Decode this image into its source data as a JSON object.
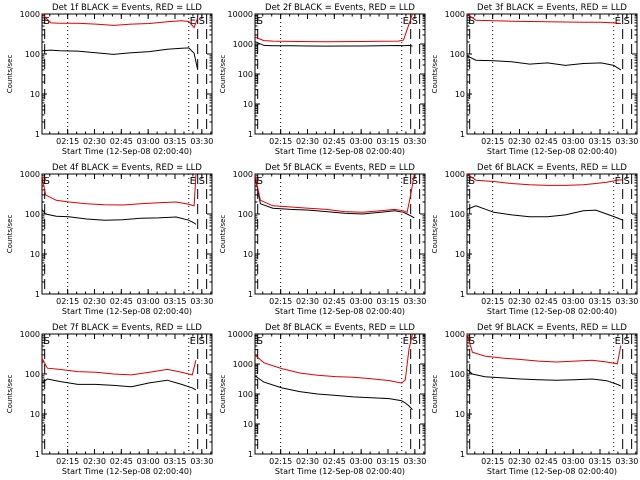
{
  "figure": {
    "xtick_labels": [
      "02:15",
      "02:30",
      "02:45",
      "03:00",
      "03:15",
      "03:30"
    ],
    "xlabel": "Start Time (12-Sep-08 02:00:40)",
    "ylabel": "Counts/sec",
    "ytick_labels": [
      "1",
      "10",
      "100",
      "1000"
    ],
    "ytick_labels_tall": [
      "1",
      "10",
      "100",
      "1000",
      "10000"
    ]
  },
  "colors": {
    "events": "#000000",
    "lld": "#e00000"
  },
  "chart_data": [
    {
      "type": "line",
      "title": "Det 1f BLACK = Events, RED = LLD",
      "xlabel": "Start Time (12-Sep-08 02:00:40)",
      "ylabel": "Counts/sec",
      "yscale": "log",
      "ylim": [
        1,
        1000
      ],
      "xlim_minutes": [
        0,
        95
      ],
      "x_minutes": [
        0,
        5,
        10,
        20,
        30,
        40,
        50,
        60,
        70,
        78,
        82,
        85,
        87
      ],
      "series": [
        {
          "name": "Events",
          "color": "#000000",
          "values": [
            120,
            125,
            120,
            118,
            108,
            98,
            108,
            115,
            132,
            140,
            142,
            105,
            40
          ]
        },
        {
          "name": "LLD",
          "color": "#e00000",
          "values": [
            1000,
            600,
            590,
            590,
            560,
            520,
            560,
            580,
            640,
            680,
            650,
            460,
            800
          ]
        }
      ],
      "markers": {
        "S_left": "S",
        "E": "E",
        "S_right": "S"
      }
    },
    {
      "type": "line",
      "title": "Det 2f BLACK = Events, RED = LLD",
      "xlabel": "Start Time (12-Sep-08 02:00:40)",
      "ylabel": "Counts/sec",
      "yscale": "log",
      "ylim": [
        1,
        10000
      ],
      "xlim_minutes": [
        0,
        95
      ],
      "x_minutes": [
        0,
        5,
        10,
        20,
        30,
        40,
        50,
        60,
        70,
        80,
        83,
        86,
        88
      ],
      "series": [
        {
          "name": "Events",
          "color": "#000000",
          "values": [
            1200,
            900,
            880,
            870,
            860,
            850,
            860,
            860,
            880,
            890,
            880,
            900,
            850
          ]
        },
        {
          "name": "LLD",
          "color": "#e00000",
          "values": [
            1700,
            1300,
            1250,
            1220,
            1200,
            1180,
            1200,
            1210,
            1230,
            1250,
            1350,
            4500,
            10000
          ]
        }
      ],
      "markers": {
        "S_left": "S",
        "E": "E",
        "S_right": "S"
      }
    },
    {
      "type": "line",
      "title": "Det 3f BLACK = Events, RED = LLD",
      "xlabel": "Start Time (12-Sep-08 02:00:40)",
      "ylabel": "Counts/sec",
      "yscale": "log",
      "ylim": [
        1,
        1000
      ],
      "xlim_minutes": [
        0,
        95
      ],
      "x_minutes": [
        0,
        5,
        15,
        25,
        35,
        45,
        55,
        65,
        75,
        82,
        86
      ],
      "series": [
        {
          "name": "Events",
          "color": "#000000",
          "values": [
            90,
            70,
            68,
            64,
            56,
            60,
            52,
            58,
            60,
            52,
            40
          ]
        },
        {
          "name": "LLD",
          "color": "#e00000",
          "values": [
            1000,
            700,
            680,
            660,
            650,
            640,
            630,
            620,
            620,
            600,
            580
          ]
        }
      ],
      "markers": {
        "S_left": "S",
        "E": "E",
        "S_right": "S"
      }
    },
    {
      "type": "line",
      "title": "Det 4f BLACK = Events, RED = LLD",
      "xlabel": "Start Time (12-Sep-08 02:00:40)",
      "ylabel": "Counts/sec",
      "yscale": "log",
      "ylim": [
        1,
        1000
      ],
      "xlim_minutes": [
        0,
        95
      ],
      "x_minutes": [
        0,
        2,
        8,
        15,
        25,
        35,
        45,
        55,
        65,
        75,
        82,
        85,
        86
      ],
      "series": [
        {
          "name": "Events",
          "color": "#000000",
          "values": [
            130,
            100,
            88,
            85,
            75,
            70,
            72,
            78,
            80,
            84,
            70,
            60,
            55
          ]
        },
        {
          "name": "LLD",
          "color": "#e00000",
          "values": [
            900,
            300,
            220,
            200,
            180,
            170,
            168,
            180,
            190,
            200,
            175,
            160,
            950
          ]
        }
      ],
      "markers": {
        "S_left": "S",
        "E": "E",
        "S_right": "S"
      }
    },
    {
      "type": "line",
      "title": "Det 5f BLACK = Events, RED = LLD",
      "xlabel": "Start Time (12-Sep-08 02:00:40)",
      "ylabel": "Counts/sec",
      "yscale": "log",
      "ylim": [
        1,
        1000
      ],
      "xlim_minutes": [
        0,
        95
      ],
      "x_minutes": [
        0,
        3,
        10,
        20,
        30,
        40,
        50,
        60,
        70,
        78,
        83,
        85,
        87,
        89
      ],
      "series": [
        {
          "name": "Events",
          "color": "#000000",
          "values": [
            900,
            180,
            140,
            130,
            125,
            115,
            105,
            100,
            110,
            120,
            110,
            100,
            90,
            80
          ]
        },
        {
          "name": "LLD",
          "color": "#e00000",
          "values": [
            950,
            220,
            160,
            150,
            140,
            130,
            115,
            110,
            120,
            130,
            120,
            110,
            300,
            1000
          ]
        }
      ],
      "markers": {
        "S_left": "S",
        "E": "E",
        "S_right": "S"
      }
    },
    {
      "type": "line",
      "title": "Det 6f BLACK = Events, RED = LLD",
      "xlabel": "Start Time (12-Sep-08 02:00:40)",
      "ylabel": "Counts/sec",
      "yscale": "log",
      "ylim": [
        1,
        1000
      ],
      "xlim_minutes": [
        0,
        95
      ],
      "x_minutes": [
        0,
        5,
        15,
        25,
        35,
        45,
        55,
        65,
        72,
        78,
        84,
        87
      ],
      "series": [
        {
          "name": "Events",
          "color": "#000000",
          "values": [
            130,
            160,
            110,
            95,
            85,
            85,
            95,
            120,
            125,
            100,
            80,
            70
          ]
        },
        {
          "name": "LLD",
          "color": "#e00000",
          "values": [
            1000,
            700,
            650,
            580,
            540,
            520,
            520,
            540,
            580,
            620,
            700,
            720
          ]
        }
      ],
      "markers": {
        "S_left": "S",
        "E": "E",
        "S_right": "S"
      }
    },
    {
      "type": "line",
      "title": "Det 7f BLACK = Events, RED = LLD",
      "xlabel": "Start Time (12-Sep-08 02:00:40)",
      "ylabel": "Counts/sec",
      "yscale": "log",
      "ylim": [
        1,
        1000
      ],
      "xlim_minutes": [
        0,
        95
      ],
      "x_minutes": [
        0,
        3,
        10,
        20,
        30,
        40,
        50,
        60,
        70,
        78,
        84,
        86
      ],
      "series": [
        {
          "name": "Events",
          "color": "#000000",
          "values": [
            60,
            75,
            65,
            55,
            55,
            52,
            48,
            60,
            70,
            55,
            45,
            40
          ]
        },
        {
          "name": "LLD",
          "color": "#e00000",
          "values": [
            250,
            140,
            130,
            115,
            110,
            100,
            95,
            110,
            130,
            110,
            95,
            220
          ]
        }
      ],
      "markers": {
        "S_left": "S",
        "E": "E",
        "S_right": "S"
      }
    },
    {
      "type": "line",
      "title": "Det 8f BLACK = Events, RED = LLD",
      "xlabel": "Start Time (12-Sep-08 02:00:40)",
      "ylabel": "Counts/sec",
      "yscale": "log",
      "ylim": [
        1,
        10000
      ],
      "xlim_minutes": [
        0,
        95
      ],
      "x_minutes": [
        0,
        5,
        15,
        25,
        35,
        45,
        55,
        65,
        75,
        82,
        84,
        86,
        88
      ],
      "series": [
        {
          "name": "Events",
          "color": "#000000",
          "values": [
            400,
            250,
            160,
            120,
            100,
            90,
            80,
            75,
            70,
            60,
            50,
            40,
            30
          ]
        },
        {
          "name": "LLD",
          "color": "#e00000",
          "values": [
            2000,
            1100,
            700,
            500,
            420,
            380,
            360,
            320,
            280,
            230,
            300,
            3000,
            10000
          ]
        }
      ],
      "markers": {
        "S_left": "S",
        "E": "E",
        "S_right": "S"
      }
    },
    {
      "type": "line",
      "title": "Det 9f BLACK = Events, RED = LLD",
      "xlabel": "Start Time (12-Sep-08 02:00:40)",
      "ylabel": "Counts/sec",
      "yscale": "log",
      "ylim": [
        1,
        1000
      ],
      "xlim_minutes": [
        0,
        95
      ],
      "x_minutes": [
        0,
        3,
        10,
        20,
        30,
        40,
        50,
        60,
        70,
        78,
        84,
        86
      ],
      "series": [
        {
          "name": "Events",
          "color": "#000000",
          "values": [
            130,
            100,
            85,
            80,
            75,
            72,
            70,
            72,
            75,
            68,
            55,
            50
          ]
        },
        {
          "name": "LLD",
          "color": "#e00000",
          "values": [
            1000,
            350,
            280,
            250,
            230,
            210,
            200,
            210,
            220,
            200,
            180,
            520
          ]
        }
      ],
      "markers": {
        "S_left": "S",
        "E": "E",
        "S_right": "S"
      }
    }
  ]
}
